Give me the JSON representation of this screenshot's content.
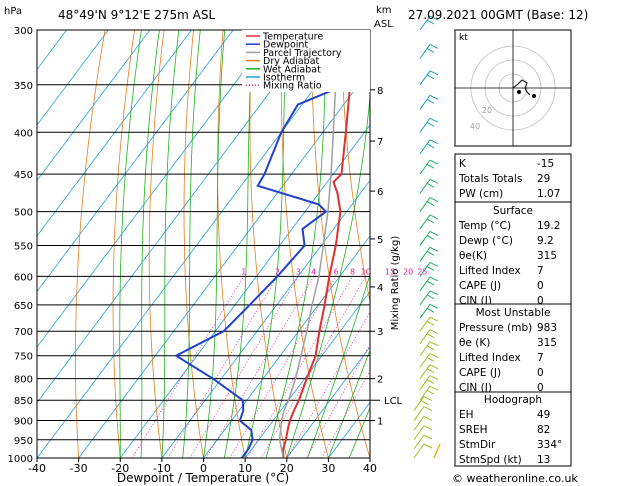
{
  "header": {
    "hpa_unit": "hPa",
    "location": "48°49'N  9°12'E  275m  ASL",
    "km_unit": "km",
    "asl_label": "ASL",
    "datetime": "27.09.2021  00GMT  (Base: 12)"
  },
  "legend": {
    "items": [
      {
        "label": "Temperature",
        "color": "#e03030",
        "style": "solid"
      },
      {
        "label": "Dewpoint",
        "color": "#2040d0",
        "style": "solid"
      },
      {
        "label": "Parcel Trajectory",
        "color": "#a0a0a0",
        "style": "solid"
      },
      {
        "label": "Dry Adiabat",
        "color": "#e08020",
        "style": "solid"
      },
      {
        "label": "Wet Adiabat",
        "color": "#20b020",
        "style": "solid"
      },
      {
        "label": "Isotherm",
        "color": "#20a0e0",
        "style": "solid"
      },
      {
        "label": "Mixing Ratio",
        "color": "#e020a0",
        "style": "dotted"
      }
    ]
  },
  "chart_data": {
    "type": "line",
    "xlabel": "Dewpoint / Temperature (°C)",
    "ylabel_right": "Mixing Ratio (g/kg)",
    "xlim": [
      -40,
      40
    ],
    "ylim_hpa": [
      1000,
      300
    ],
    "x_ticks": [
      "-40",
      "-30",
      "-20",
      "-10",
      "0",
      "10",
      "20",
      "30",
      "40"
    ],
    "p_ticks": [
      "300",
      "350",
      "400",
      "450",
      "500",
      "550",
      "600",
      "650",
      "700",
      "750",
      "800",
      "850",
      "900",
      "950",
      "1000"
    ],
    "km_ticks": [
      {
        "label": "1",
        "p": 900
      },
      {
        "label": "2",
        "p": 800
      },
      {
        "label": "3",
        "p": 700
      },
      {
        "label": "4",
        "p": 618
      },
      {
        "label": "5",
        "p": 540
      },
      {
        "label": "6",
        "p": 472
      },
      {
        "label": "7",
        "p": 410
      },
      {
        "label": "8",
        "p": 355
      }
    ],
    "lcl": {
      "label": "LCL",
      "p": 850
    },
    "mixing_ratio_labels": [
      "1",
      "2",
      "3",
      "4",
      "6",
      "8",
      "10",
      "15",
      "20",
      "25"
    ],
    "mixing_ratio_values": [
      1,
      2,
      3,
      4,
      6,
      8,
      10,
      15,
      20,
      25
    ],
    "series": [
      {
        "name": "Temperature",
        "color": "#e03030",
        "points": [
          [
            1000,
            19.2
          ],
          [
            975,
            17.5
          ],
          [
            950,
            16.5
          ],
          [
            925,
            15.2
          ],
          [
            900,
            14.0
          ],
          [
            875,
            13.2
          ],
          [
            850,
            12.5
          ],
          [
            800,
            10.5
          ],
          [
            750,
            8.5
          ],
          [
            700,
            5.0
          ],
          [
            650,
            1.5
          ],
          [
            600,
            -2.5
          ],
          [
            550,
            -6.5
          ],
          [
            500,
            -11.5
          ],
          [
            475,
            -15.5
          ],
          [
            460,
            -18.5
          ],
          [
            450,
            -18.0
          ],
          [
            400,
            -24.5
          ],
          [
            350,
            -32.0
          ],
          [
            300,
            -40.0
          ]
        ]
      },
      {
        "name": "Dewpoint",
        "color": "#2040d0",
        "points": [
          [
            1000,
            9.2
          ],
          [
            975,
            9.2
          ],
          [
            950,
            8.5
          ],
          [
            925,
            6.5
          ],
          [
            900,
            2.0
          ],
          [
            875,
            1.0
          ],
          [
            850,
            -1.0
          ],
          [
            800,
            -12.0
          ],
          [
            750,
            -25.0
          ],
          [
            700,
            -18.0
          ],
          [
            650,
            -16.5
          ],
          [
            600,
            -15.0
          ],
          [
            550,
            -14.0
          ],
          [
            525,
            -17.5
          ],
          [
            500,
            -15.0
          ],
          [
            490,
            -18.0
          ],
          [
            465,
            -36.0
          ],
          [
            450,
            -36.5
          ],
          [
            400,
            -40.0
          ],
          [
            370,
            -41.0
          ],
          [
            340,
            -29.0
          ],
          [
            320,
            -41.0
          ],
          [
            300,
            -42.0
          ]
        ]
      },
      {
        "name": "Parcel Trajectory",
        "color": "#a0a0a0",
        "points": [
          [
            1000,
            19.2
          ],
          [
            950,
            15.0
          ],
          [
            900,
            12.0
          ],
          [
            875,
            10.8
          ],
          [
            850,
            10.0
          ],
          [
            800,
            7.8
          ],
          [
            750,
            5.0
          ],
          [
            700,
            2.0
          ],
          [
            650,
            -1.5
          ],
          [
            600,
            -5.0
          ],
          [
            550,
            -9.5
          ],
          [
            500,
            -14.5
          ],
          [
            450,
            -20.5
          ],
          [
            400,
            -27.5
          ],
          [
            350,
            -35.5
          ],
          [
            300,
            -44.5
          ]
        ]
      }
    ]
  },
  "indices": {
    "rows": [
      {
        "label": "K",
        "value": "-15"
      },
      {
        "label": "Totals Totals",
        "value": "29"
      },
      {
        "label": "PW (cm)",
        "value": "1.07"
      }
    ]
  },
  "surface": {
    "title": "Surface",
    "rows": [
      {
        "label": "Temp (°C)",
        "value": "19.2"
      },
      {
        "label": "Dewp (°C)",
        "value": "9.2"
      },
      {
        "label": "θe(K)",
        "value": "315"
      },
      {
        "label": "Lifted Index",
        "value": "7"
      },
      {
        "label": "CAPE (J)",
        "value": "0"
      },
      {
        "label": "CIN (J)",
        "value": "0"
      }
    ]
  },
  "most_unstable": {
    "title": "Most Unstable",
    "rows": [
      {
        "label": "Pressure (mb)",
        "value": "983"
      },
      {
        "label": "θe (K)",
        "value": "315"
      },
      {
        "label": "Lifted Index",
        "value": "7"
      },
      {
        "label": "CAPE (J)",
        "value": "0"
      },
      {
        "label": "CIN (J)",
        "value": "0"
      }
    ]
  },
  "hodograph_table": {
    "title": "Hodograph",
    "rows": [
      {
        "label": "EH",
        "value": "49"
      },
      {
        "label": "SREH",
        "value": "82"
      },
      {
        "label": "StmDir",
        "value": "334°"
      },
      {
        "label": "StmSpd (kt)",
        "value": "13"
      }
    ]
  },
  "hodograph": {
    "unit_label": "kt",
    "ring_labels": [
      "20",
      "40"
    ]
  },
  "footer": {
    "copyright": "© weatheronline.co.uk"
  }
}
